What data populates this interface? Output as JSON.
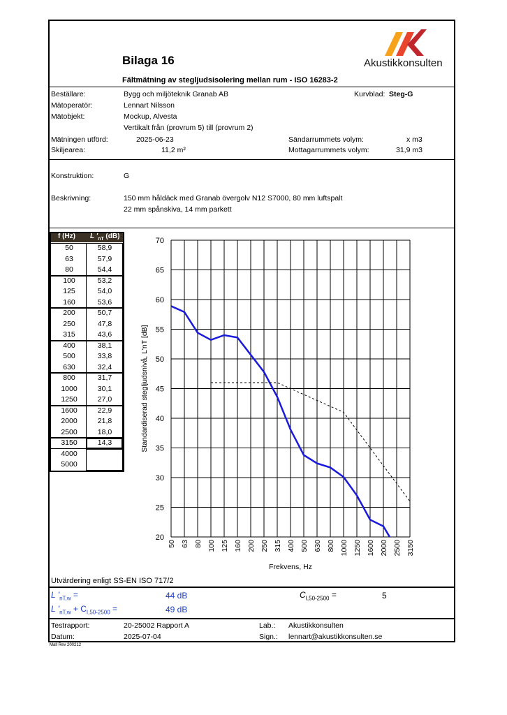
{
  "header": {
    "title": "Bilaga 16",
    "subtitle": "Fältmätning av stegljudsisolering mellan rum - ISO 16283-2",
    "logo_text": "Akustikkonsulten",
    "logo_colors": [
      "#f7a21b",
      "#e8452c",
      "#c0272d"
    ]
  },
  "info": {
    "bestallare_label": "Beställare:",
    "bestallare": "Bygg och miljöteknik Granab AB",
    "matoperator_label": "Mätoperatör:",
    "matoperator": "Lennart Nilsson",
    "matobjekt_label": "Mätobjekt:",
    "matobjekt": "Mockup, Alvesta",
    "matobjekt2": "Vertikalt från  (provrum 5) till (provrum 2)",
    "kurvblad_label": "Kurvblad:",
    "kurvblad": "Steg-G",
    "datum_label": "Mätningen utförd:",
    "datum": "2025-06-23",
    "skiljearea_label": "Skiljearea:",
    "skiljearea": "11,2  m²",
    "sandar_label": "Sändarrummets volym:",
    "sandar": "x m3",
    "mottagar_label": "Mottagarrummets volym:",
    "mottagar": "31,9  m3"
  },
  "construction": {
    "konstruktion_label": "Konstruktion:",
    "konstruktion": "G",
    "beskrivning_label": "Beskrivning:",
    "beskrivning1": "150 mm håldäck med Granab övergolv N12 S7000, 80 mm luftspalt",
    "beskrivning2": "22 mm spånskiva, 14 mm parkett"
  },
  "table": {
    "col1": "f (Hz)",
    "col2_main": "L '",
    "col2_sub": "nT",
    "col2_unit": " (dB)",
    "rows": [
      {
        "f": "50",
        "l": "58,9"
      },
      {
        "f": "63",
        "l": "57,9"
      },
      {
        "f": "80",
        "l": "54,4"
      },
      {
        "f": "100",
        "l": "53,2"
      },
      {
        "f": "125",
        "l": "54,0"
      },
      {
        "f": "160",
        "l": "53,6"
      },
      {
        "f": "200",
        "l": "50,7"
      },
      {
        "f": "250",
        "l": "47,8"
      },
      {
        "f": "315",
        "l": "43,6"
      },
      {
        "f": "400",
        "l": "38,1"
      },
      {
        "f": "500",
        "l": "33,8"
      },
      {
        "f": "630",
        "l": "32,4"
      },
      {
        "f": "800",
        "l": "31,7"
      },
      {
        "f": "1000",
        "l": "30,1"
      },
      {
        "f": "1250",
        "l": "27,0"
      },
      {
        "f": "1600",
        "l": "22,9"
      },
      {
        "f": "2000",
        "l": "21,8"
      },
      {
        "f": "2500",
        "l": "18,0"
      },
      {
        "f": "3150",
        "l": "14,3"
      },
      {
        "f": "4000",
        "l": ""
      },
      {
        "f": "5000",
        "l": ""
      }
    ]
  },
  "chart_data": {
    "type": "line",
    "categories": [
      "50",
      "63",
      "80",
      "100",
      "125",
      "160",
      "200",
      "250",
      "315",
      "400",
      "500",
      "630",
      "800",
      "1000",
      "1250",
      "1600",
      "2000",
      "2500",
      "3150"
    ],
    "ylabel": "Standardiserad stegljudsnivå, L'nT [dB]",
    "xlabel": "Frekvens, Hz",
    "ylim": [
      20,
      70
    ],
    "yticks": [
      20,
      25,
      30,
      35,
      40,
      45,
      50,
      55,
      60,
      65,
      70
    ],
    "grid": true,
    "series": [
      {
        "style": "solid",
        "color": "#1a1adb",
        "values": [
          58.9,
          57.9,
          54.4,
          53.2,
          54.0,
          53.6,
          50.7,
          47.8,
          43.6,
          38.1,
          33.8,
          32.4,
          31.7,
          30.1,
          27.0,
          22.9,
          21.8,
          18.0,
          14.3
        ]
      },
      {
        "style": "dashed",
        "color": "#000000",
        "values": [
          null,
          null,
          null,
          46,
          46,
          46,
          46,
          46,
          46,
          45,
          44,
          43,
          42,
          41,
          38,
          35,
          32,
          29,
          26
        ]
      }
    ]
  },
  "evaluation": {
    "method": "Utvärdering enligt SS-EN ISO 717/2",
    "lw_label": "L '",
    "lw_sub": "nT,w",
    "lw_eq": " =",
    "lw_value": "44 dB",
    "sum_label_a": "L '",
    "sum_label_sub": "nT,w",
    "sum_label_b": " + C",
    "sum_label_sub2": "I,50-2500",
    "sum_label_eq": " =",
    "sum_value": "49 dB",
    "ci_label": "C",
    "ci_sub": "I,50-2500",
    "ci_eq": " =",
    "ci_value": "5"
  },
  "footer": {
    "testrapport_label": "Testrapport:",
    "testrapport": "20-25002 Rapport A",
    "datum_label": "Datum:",
    "datum": "2025-07-04",
    "lab_label": "Lab.:",
    "lab": "Akustikkonsulten",
    "sign_label": "Sign.:",
    "sign": "lennart@akustikkonsulten.se",
    "rev": "Mall Rev 200212"
  }
}
